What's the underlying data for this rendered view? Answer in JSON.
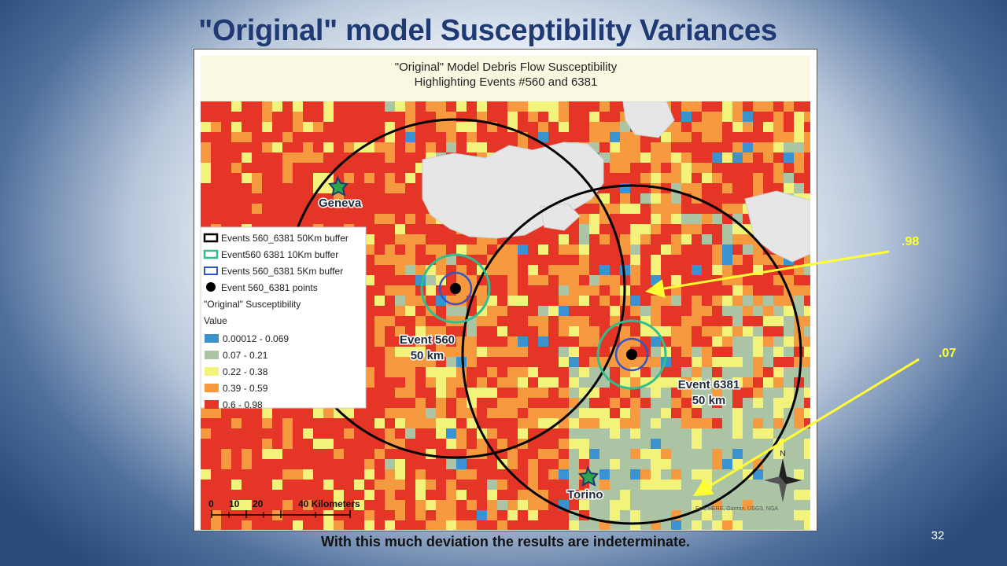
{
  "slide": {
    "title": "\"Original\" model Susceptibility Variances",
    "caption": "With this much deviation the results are indeterminate.",
    "number": "32"
  },
  "map": {
    "title_line1": "\"Original\" Model Debris Flow Susceptibility",
    "title_line2": "Highlighting Events #560 and 6381",
    "cities": [
      "Geneva",
      "Torino"
    ],
    "event_labels": [
      {
        "name": "Event 560",
        "radius": "50 km"
      },
      {
        "name": "Event 6381",
        "radius": "50 km"
      }
    ],
    "legend": {
      "items": [
        "Events 560_6381 50Km buffer",
        "Event560 6381 10Km buffer",
        "Events 560_6381 5Km buffer",
        "Event 560_6381 points"
      ],
      "raster_title": "\"Original\" Susceptibility",
      "value_label": "Value",
      "classes": [
        {
          "label": "0.00012 - 0.069",
          "color": "#3a93cf"
        },
        {
          "label": "0.07 - 0.21",
          "color": "#abc4a4"
        },
        {
          "label": "0.22 - 0.38",
          "color": "#f3f27a"
        },
        {
          "label": "0.39 - 0.59",
          "color": "#f7993f"
        },
        {
          "label": "0.6 - 0.98",
          "color": "#e43527"
        }
      ]
    },
    "scale_bar": {
      "ticks": [
        "0",
        "10",
        "20",
        "40 Kilometers"
      ]
    },
    "north_arrow": "N",
    "attribution": "Esri, HERE, Garmin, USGS, NGA",
    "colors": {
      "buffer_50km": "#000000",
      "buffer_10km": "#2fbf8f",
      "buffer_5km": "#3355cc",
      "event_point": "#000000",
      "city_marker": "#2ea44f",
      "mountain_shade": "#e6e6e6",
      "title_band": "#fbf8e1"
    }
  },
  "callouts": [
    {
      "label": ".98",
      "color": "#ffff33"
    },
    {
      "label": ".07",
      "color": "#ffff33"
    }
  ]
}
